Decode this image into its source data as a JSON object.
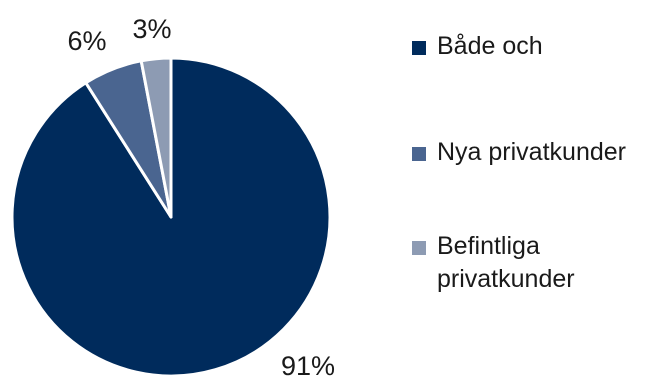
{
  "chart_data": {
    "type": "pie",
    "title": "",
    "start_angle_deg": 0,
    "direction": "clockwise",
    "slices": [
      {
        "name": "Både och",
        "value": 91,
        "label": "91%",
        "color": "#002b5c"
      },
      {
        "name": "Nya privatkunder",
        "value": 6,
        "label": "6%",
        "color": "#4a6590"
      },
      {
        "name": "Befintliga privatkunder",
        "value": 3,
        "label": "3%",
        "color": "#8d9bb3"
      }
    ],
    "legend": {
      "position": "right",
      "items": [
        {
          "label": "Både och",
          "color": "#002b5c"
        },
        {
          "label": "Nya privatkunder",
          "color": "#4a6590"
        },
        {
          "label": "Befintliga privatkunder",
          "color": "#8d9bb3"
        }
      ]
    }
  }
}
